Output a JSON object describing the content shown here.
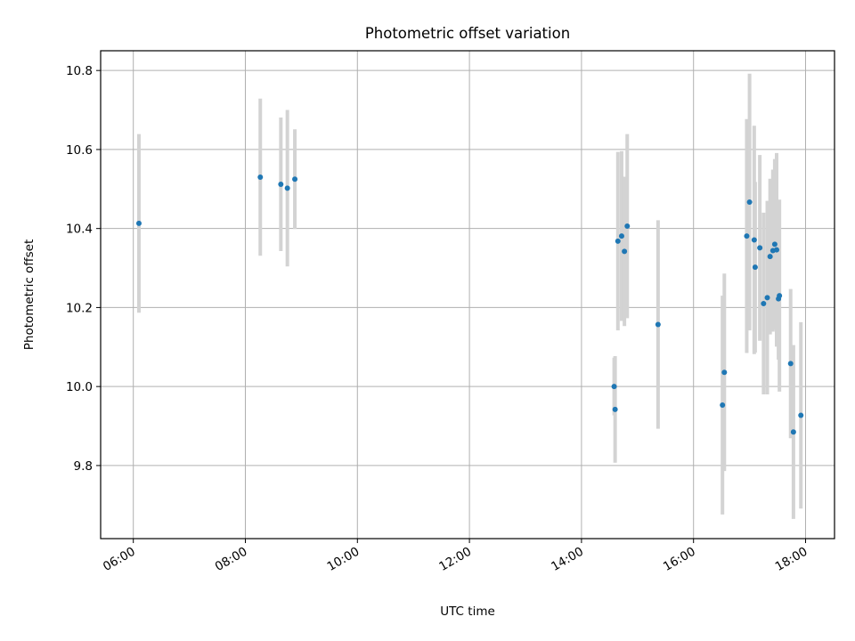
{
  "chart_data": {
    "type": "scatter",
    "title": "Photometric offset variation",
    "xlabel": "UTC time",
    "ylabel": "Photometric offset",
    "x_tick_labels": [
      "06:00",
      "08:00",
      "10:00",
      "12:00",
      "14:00",
      "16:00",
      "18:00"
    ],
    "y_tick_labels": [
      "9.8",
      "10.0",
      "10.2",
      "10.4",
      "10.6",
      "10.8"
    ],
    "xlim": [
      "05:25",
      "18:31"
    ],
    "ylim": [
      9.615,
      10.85
    ],
    "grid": true,
    "point_color": "#1f77b4",
    "errorbar_color": "#d3d3d3",
    "points": [
      {
        "x": "06:06",
        "y": 10.413,
        "yerr": 0.226
      },
      {
        "x": "08:16",
        "y": 10.53,
        "yerr": 0.199
      },
      {
        "x": "08:38",
        "y": 10.512,
        "yerr": 0.169
      },
      {
        "x": "08:45",
        "y": 10.502,
        "yerr": 0.198
      },
      {
        "x": "08:53",
        "y": 10.525,
        "yerr": 0.126
      },
      {
        "x": "14:35",
        "y": 10.0,
        "yerr": 0.073
      },
      {
        "x": "14:36",
        "y": 9.942,
        "yerr": 0.135
      },
      {
        "x": "14:39",
        "y": 10.368,
        "yerr": 0.226
      },
      {
        "x": "14:43",
        "y": 10.381,
        "yerr": 0.215
      },
      {
        "x": "14:46",
        "y": 10.342,
        "yerr": 0.189
      },
      {
        "x": "14:49",
        "y": 10.406,
        "yerr": 0.233
      },
      {
        "x": "15:22",
        "y": 10.157,
        "yerr": 0.264
      },
      {
        "x": "16:31",
        "y": 9.953,
        "yerr": 0.277
      },
      {
        "x": "16:33",
        "y": 10.036,
        "yerr": 0.25
      },
      {
        "x": "16:57",
        "y": 10.381,
        "yerr": 0.296
      },
      {
        "x": "17:00",
        "y": 10.467,
        "yerr": 0.325
      },
      {
        "x": "17:05",
        "y": 10.371,
        "yerr": 0.289
      },
      {
        "x": "17:06",
        "y": 10.302,
        "yerr": 0.216
      },
      {
        "x": "17:11",
        "y": 10.351,
        "yerr": 0.235
      },
      {
        "x": "17:15",
        "y": 10.21,
        "yerr": 0.23
      },
      {
        "x": "17:19",
        "y": 10.225,
        "yerr": 0.245
      },
      {
        "x": "17:22",
        "y": 10.329,
        "yerr": 0.197
      },
      {
        "x": "17:25",
        "y": 10.344,
        "yerr": 0.205
      },
      {
        "x": "17:27",
        "y": 10.36,
        "yerr": 0.216
      },
      {
        "x": "17:29",
        "y": 10.346,
        "yerr": 0.245
      },
      {
        "x": "17:31",
        "y": 10.222,
        "yerr": 0.154
      },
      {
        "x": "17:32",
        "y": 10.23,
        "yerr": 0.243
      },
      {
        "x": "17:44",
        "y": 10.058,
        "yerr": 0.189
      },
      {
        "x": "17:47",
        "y": 9.885,
        "yerr": 0.22
      },
      {
        "x": "17:55",
        "y": 9.927,
        "yerr": 0.236
      }
    ]
  }
}
